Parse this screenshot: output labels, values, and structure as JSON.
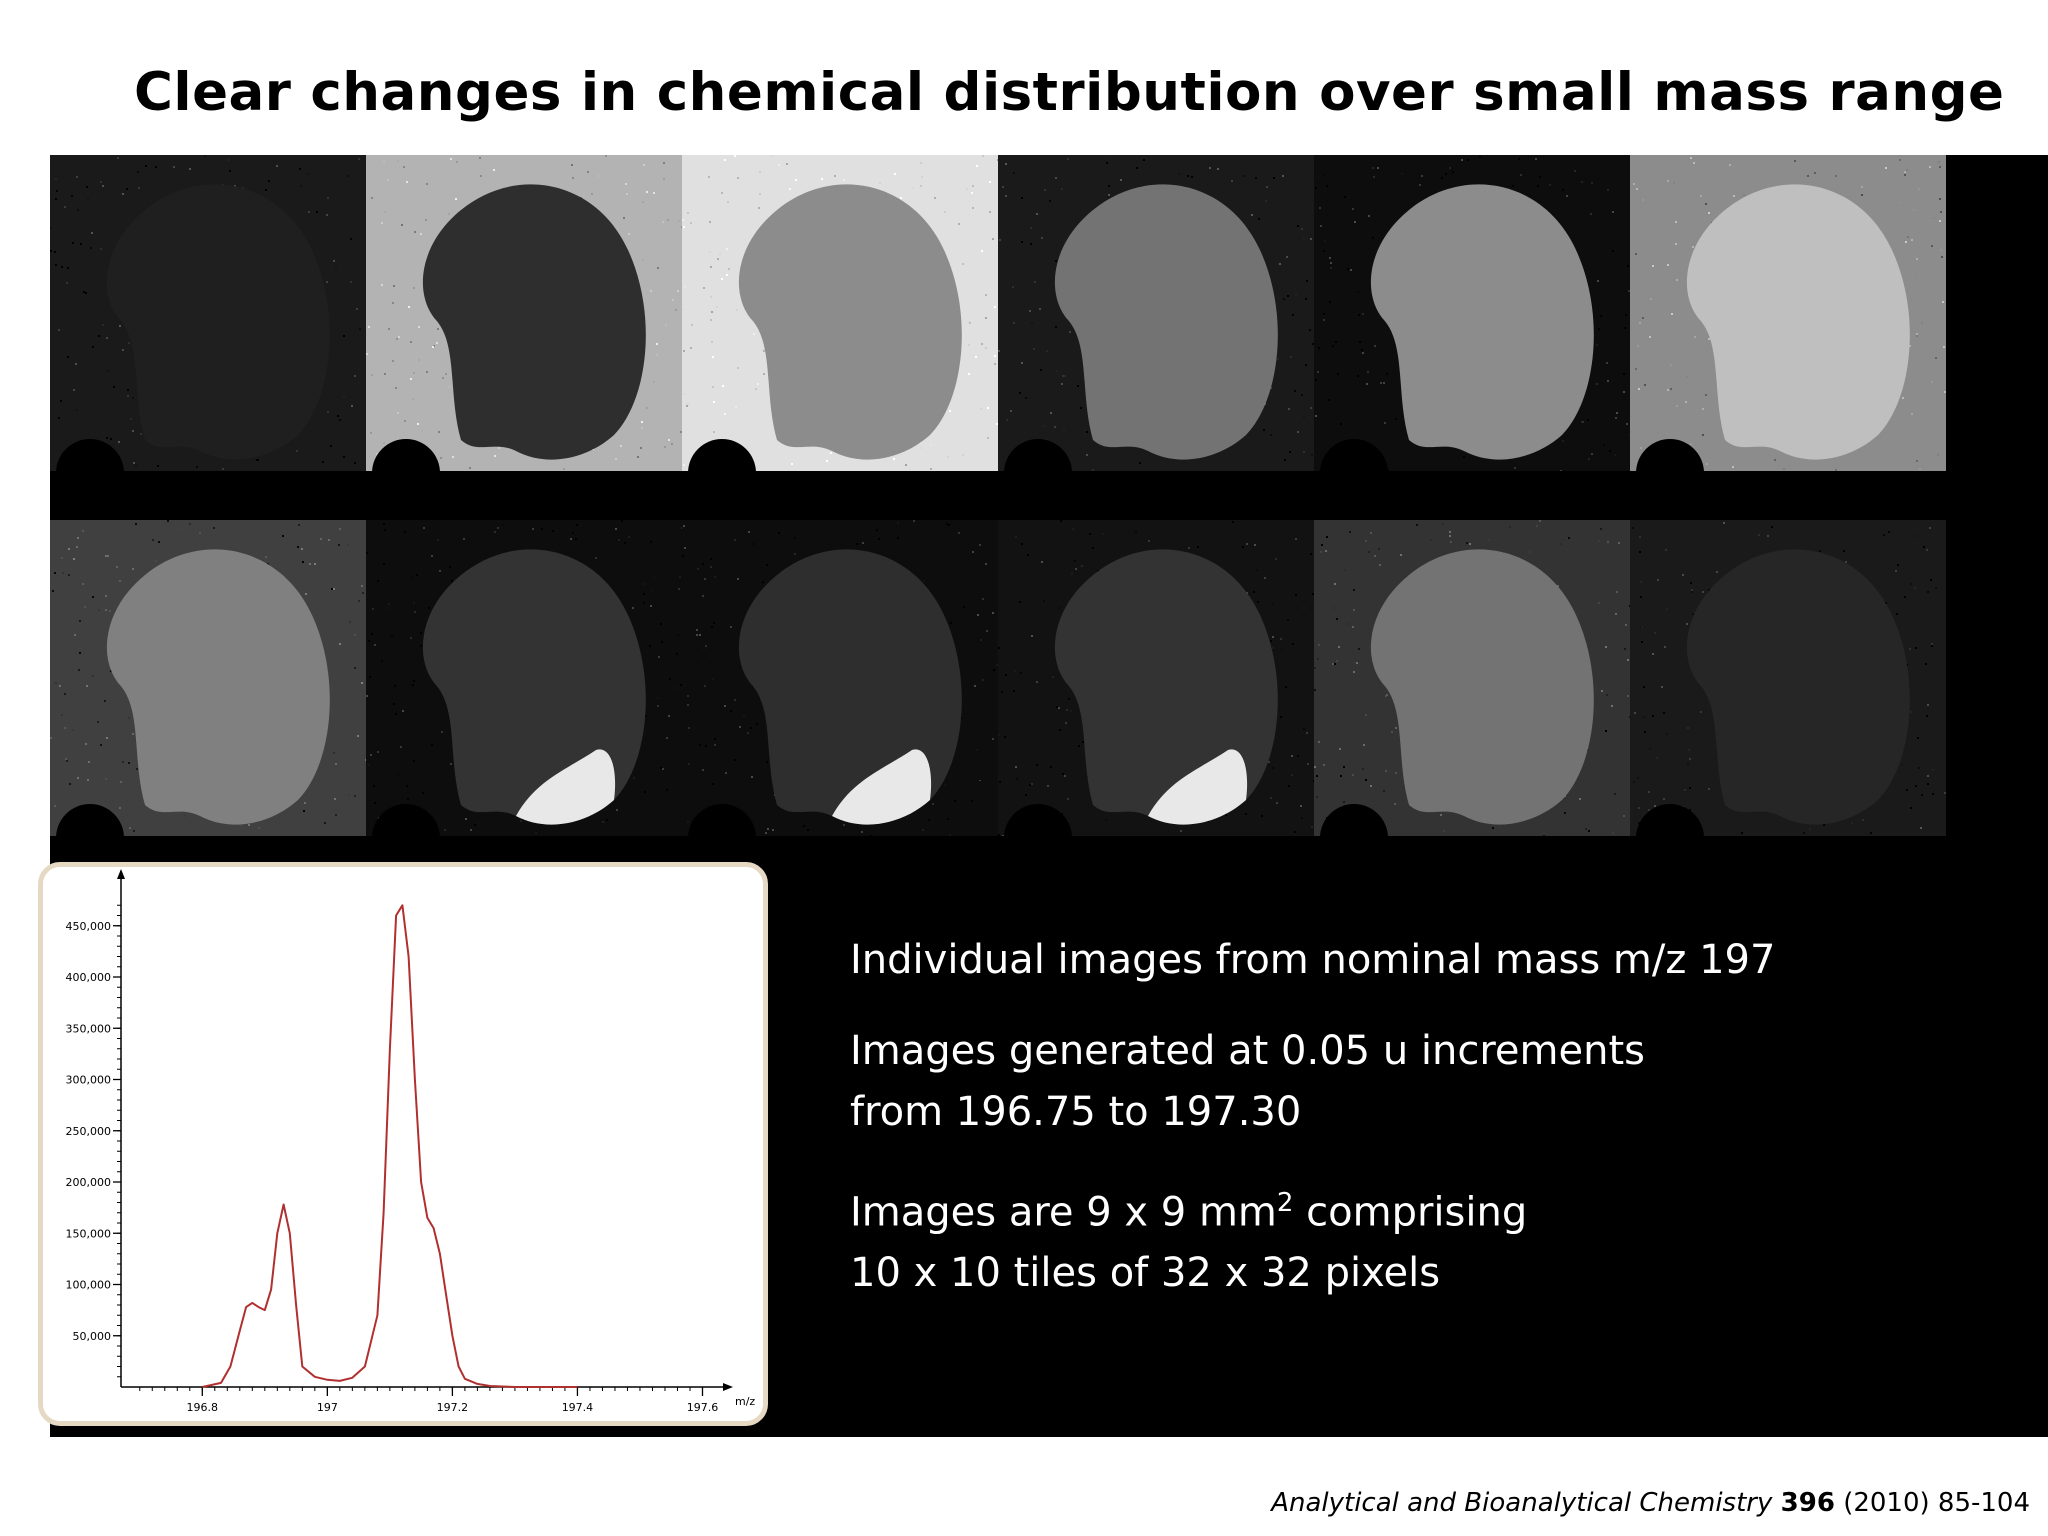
{
  "slide": {
    "title": "Clear changes in chemical distribution over small mass range",
    "bullets": [
      {
        "line1": "Individual images from nominal mass m/z 197",
        "line2": ""
      },
      {
        "line1": "Images generated at 0.05 u increments",
        "line2": "from 196.75 to 197.30"
      },
      {
        "line1_pre": "Images are 9 x 9 mm",
        "line1_sup": "2",
        "line1_post": " comprising",
        "line2": "10 x 10 tiles of 32 x 32 pixels"
      }
    ],
    "citation": {
      "journal": "Analytical and Bioanalytical Chemistry",
      "volume": "396",
      "rest": "(2010) 85-104"
    }
  },
  "image_tiles": {
    "count": 12,
    "levels": [
      {
        "background": 0.1,
        "sample": 0.12
      },
      {
        "background": 0.7,
        "sample": 0.18
      },
      {
        "background": 0.88,
        "sample": 0.55
      },
      {
        "background": 0.1,
        "sample": 0.45
      },
      {
        "background": 0.05,
        "sample": 0.55
      },
      {
        "background": 0.55,
        "sample": 0.75
      },
      {
        "background": 0.25,
        "sample": 0.5
      },
      {
        "background": 0.05,
        "sample": 0.2
      },
      {
        "background": 0.05,
        "sample": 0.18
      },
      {
        "background": 0.07,
        "sample": 0.2
      },
      {
        "background": 0.2,
        "sample": 0.45
      },
      {
        "background": 0.1,
        "sample": 0.15
      }
    ]
  },
  "chart_data": {
    "type": "line",
    "title": "",
    "xlabel": "m/z",
    "ylabel": "",
    "xlim": [
      196.67,
      197.62
    ],
    "ylim": [
      0,
      480000
    ],
    "x_ticks": [
      196.8,
      197,
      197.2,
      197.4,
      197.6
    ],
    "x_tick_labels": [
      "196.8",
      "197",
      "197.2",
      "197.4",
      "197.6"
    ],
    "y_ticks": [
      50000,
      100000,
      150000,
      200000,
      250000,
      300000,
      350000,
      400000,
      450000
    ],
    "y_tick_labels": [
      "50,000",
      "100,000",
      "150,000",
      "200,000",
      "250,000",
      "300,000",
      "350,000",
      "400,000",
      "450,000"
    ],
    "series": [
      {
        "color": "#b03030",
        "x": [
          196.8,
          196.83,
          196.845,
          196.86,
          196.87,
          196.88,
          196.89,
          196.9,
          196.91,
          196.92,
          196.93,
          196.94,
          196.95,
          196.96,
          196.98,
          197.0,
          197.02,
          197.04,
          197.06,
          197.08,
          197.09,
          197.1,
          197.11,
          197.12,
          197.13,
          197.14,
          197.15,
          197.16,
          197.17,
          197.18,
          197.19,
          197.2,
          197.21,
          197.22,
          197.24,
          197.26,
          197.3,
          197.35,
          197.4
        ],
        "y": [
          0,
          4000,
          20000,
          55000,
          78000,
          82000,
          78000,
          75000,
          95000,
          150000,
          178000,
          150000,
          80000,
          20000,
          10000,
          7000,
          6000,
          9000,
          20000,
          70000,
          170000,
          330000,
          460000,
          470000,
          420000,
          300000,
          200000,
          165000,
          155000,
          130000,
          90000,
          50000,
          20000,
          8000,
          3000,
          1000,
          0,
          0,
          0
        ]
      }
    ]
  }
}
